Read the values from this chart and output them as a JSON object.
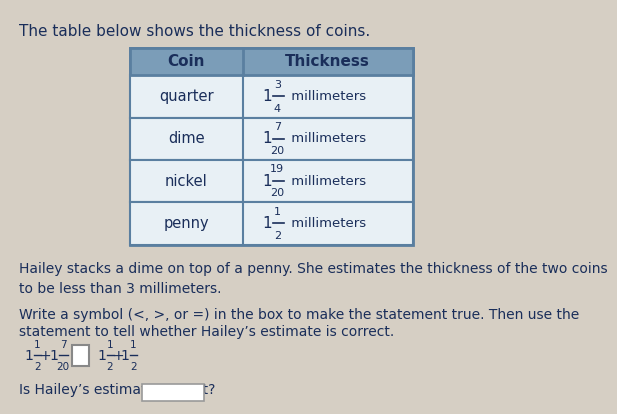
{
  "title": "The table below shows the thickness of coins.",
  "bg_color": "#d6cfc4",
  "table_header_bg": "#7b9db8",
  "table_row_bg": "#e8f0f5",
  "table_border_color": "#5a7fa0",
  "text_color": "#1a2e5a",
  "coins": [
    "quarter",
    "dime",
    "nickel",
    "penny"
  ],
  "thicknesses_num": [
    "3",
    "7",
    "19",
    "1"
  ],
  "thicknesses_den": [
    "4",
    "20",
    "20",
    "2"
  ],
  "paragraph1": "Hailey stacks a dime on top of a penny. She estimates the thickness of the two coins\nto be less than 3 millimeters.",
  "paragraph2_line1": "Write a symbol (<, >, or =) in the box to make the statement true. Then use the",
  "paragraph2_line2": "statement to tell whether Hailey’s estimate is correct.",
  "last_line": "Is Hailey’s estimate correct?",
  "expr_parts": {
    "left_whole": "1",
    "left_num": "1",
    "left_den": "2",
    "mid_whole": "1",
    "mid_num": "7",
    "mid_den": "20",
    "right1_whole": "1",
    "right1_num": "1",
    "right1_den": "2",
    "right2_whole": "1",
    "right2_num": "1",
    "right2_den": "2"
  }
}
